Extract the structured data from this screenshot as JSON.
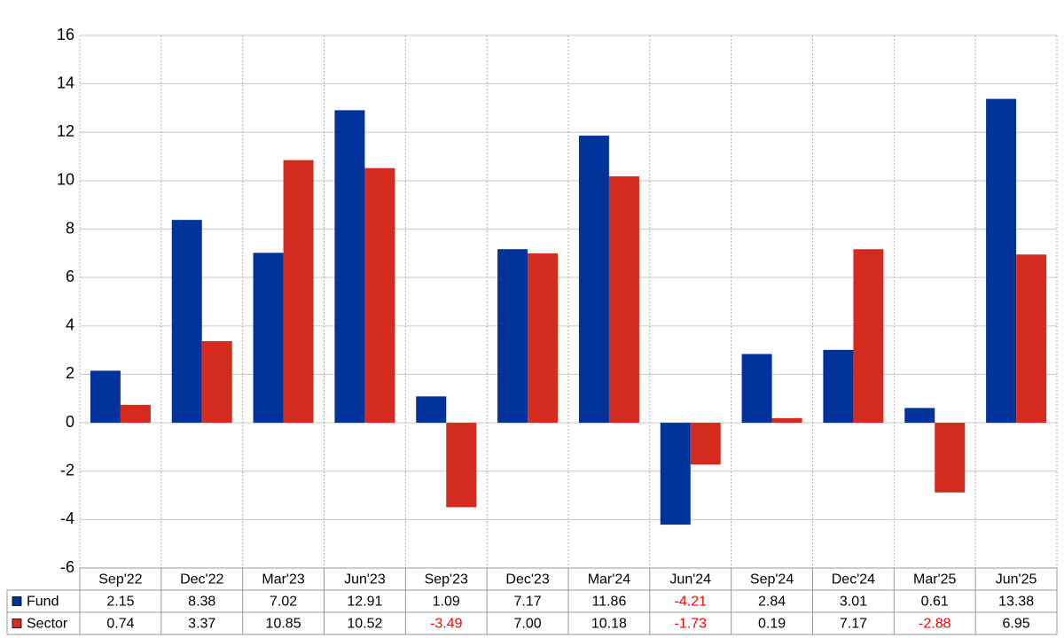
{
  "chart_data": {
    "type": "bar",
    "categories": [
      "Sep'22",
      "Dec'22",
      "Mar'23",
      "Jun'23",
      "Sep'23",
      "Dec'23",
      "Mar'24",
      "Jun'24",
      "Sep'24",
      "Dec'24",
      "Mar'25",
      "Jun'25"
    ],
    "series": [
      {
        "name": "Fund",
        "color": "#003399",
        "values": [
          2.15,
          8.38,
          7.02,
          12.91,
          1.09,
          7.17,
          11.86,
          -4.21,
          2.84,
          3.01,
          0.61,
          13.38
        ],
        "value_labels": [
          "2.15",
          "8.38",
          "7.02",
          "12.91",
          "1.09",
          "7.17",
          "11.86",
          "-4.21",
          "2.84",
          "3.01",
          "0.61",
          "13.38"
        ]
      },
      {
        "name": "Sector",
        "color": "#d52b1e",
        "values": [
          0.74,
          3.37,
          10.85,
          10.52,
          -3.49,
          7.0,
          10.18,
          -1.73,
          0.19,
          7.17,
          -2.88,
          6.95
        ],
        "value_labels": [
          "0.74",
          "3.37",
          "10.85",
          "10.52",
          "-3.49",
          "7.00",
          "10.18",
          "-1.73",
          "0.19",
          "7.17",
          "-2.88",
          "6.95"
        ]
      }
    ],
    "ylim": [
      -6,
      16
    ],
    "yticks": [
      -6,
      -4,
      -2,
      0,
      2,
      4,
      6,
      8,
      10,
      12,
      14,
      16
    ],
    "grid": true
  }
}
